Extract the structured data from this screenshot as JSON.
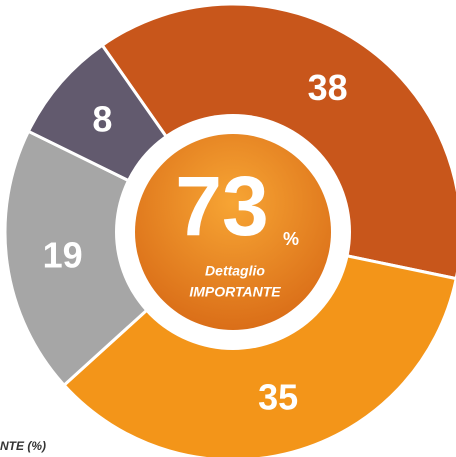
{
  "chart_data": {
    "type": "donut",
    "values": [
      38,
      35,
      19,
      8
    ],
    "colors": [
      "#c8561b",
      "#f39519",
      "#a6a6a6",
      "#625a6e"
    ],
    "center_value": "73",
    "center_unit": "%",
    "center_line1": "Dettaglio",
    "center_line2": "IMPORTANTE",
    "footnote": "NTE (%)"
  }
}
